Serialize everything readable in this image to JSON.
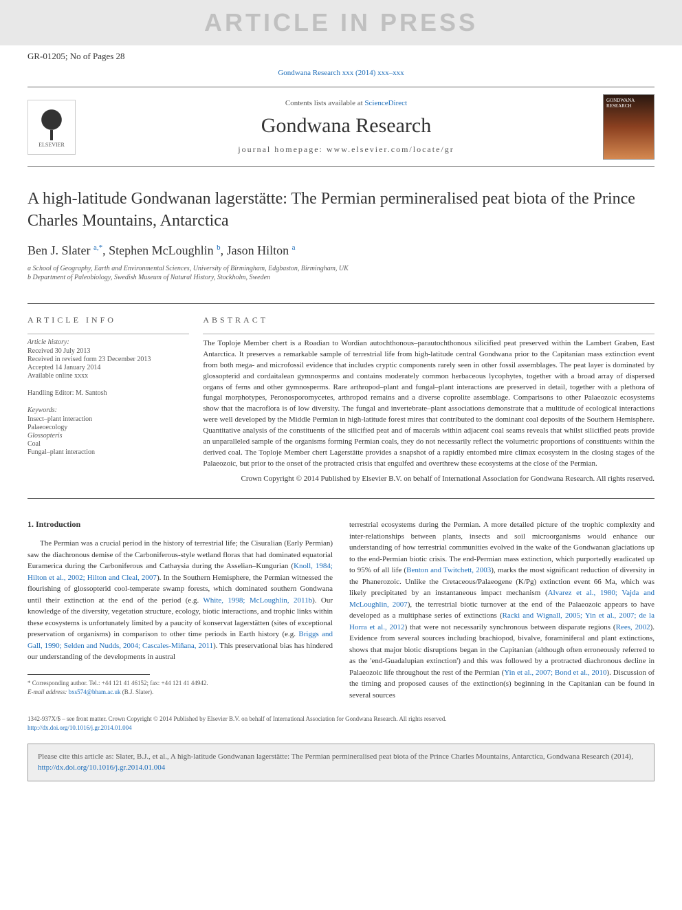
{
  "watermark": "ARTICLE IN PRESS",
  "doc_id": "GR-01205; No of Pages 28",
  "citation_top": "Gondwana Research xxx (2014) xxx–xxx",
  "header": {
    "contents_prefix": "Contents lists available at ",
    "contents_link": "ScienceDirect",
    "journal_name": "Gondwana Research",
    "homepage_prefix": "journal homepage: ",
    "homepage": "www.elsevier.com/locate/gr",
    "publisher_name": "ELSEVIER",
    "cover_label": "GONDWANA RESEARCH"
  },
  "article": {
    "title": "A high-latitude Gondwanan lagerstätte: The Permian permineralised peat biota of the Prince Charles Mountains, Antarctica",
    "authors_html": "Ben J. Slater <sup>a,*</sup>, Stephen McLoughlin <sup>b</sup>, Jason Hilton <sup>a</sup>",
    "affiliations": [
      "a School of Geography, Earth and Environmental Sciences, University of Birmingham, Edgbaston, Birmingham, UK",
      "b Department of Paleobiology, Swedish Museum of Natural History, Stockholm, Sweden"
    ]
  },
  "info": {
    "heading": "article info",
    "history_label": "Article history:",
    "history": [
      "Received 30 July 2013",
      "Received in revised form 23 December 2013",
      "Accepted 14 January 2014",
      "Available online xxxx"
    ],
    "editor": "Handling Editor: M. Santosh",
    "keywords_label": "Keywords:",
    "keywords": [
      "Insect–plant interaction",
      "Palaeoecology",
      "Glossopteris",
      "Coal",
      "Fungal–plant interaction"
    ]
  },
  "abstract": {
    "heading": "abstract",
    "text": "The Toploje Member chert is a Roadian to Wordian autochthonous–parautochthonous silicified peat preserved within the Lambert Graben, East Antarctica. It preserves a remarkable sample of terrestrial life from high-latitude central Gondwana prior to the Capitanian mass extinction event from both mega- and microfossil evidence that includes cryptic components rarely seen in other fossil assemblages. The peat layer is dominated by glossopterid and cordaitalean gymnosperms and contains moderately common herbaceous lycophytes, together with a broad array of dispersed organs of ferns and other gymnosperms. Rare arthropod–plant and fungal–plant interactions are preserved in detail, together with a plethora of fungal morphotypes, Peronosporomycetes, arthropod remains and a diverse coprolite assemblage. Comparisons to other Palaeozoic ecosystems show that the macroflora is of low diversity. The fungal and invertebrate–plant associations demonstrate that a multitude of ecological interactions were well developed by the Middle Permian in high-latitude forest mires that contributed to the dominant coal deposits of the Southern Hemisphere. Quantitative analysis of the constituents of the silicified peat and of macerals within adjacent coal seams reveals that whilst silicified peats provide an unparalleled sample of the organisms forming Permian coals, they do not necessarily reflect the volumetric proportions of constituents within the derived coal. The Toploje Member chert Lagerstätte provides a snapshot of a rapidly entombed mire climax ecosystem in the closing stages of the Palaeozoic, but prior to the onset of the protracted crisis that engulfed and overthrew these ecosystems at the close of the Permian.",
    "copyright": "Crown Copyright © 2014 Published by Elsevier B.V. on behalf of International Association for Gondwana Research. All rights reserved."
  },
  "body": {
    "section_heading": "1. Introduction",
    "col1": "The Permian was a crucial period in the history of terrestrial life; the Cisuralian (Early Permian) saw the diachronous demise of the Carboniferous-style wetland floras that had dominated equatorial Euramerica during the Carboniferous and Cathaysia during the Asselian–Kungurian (<a>Knoll, 1984; Hilton et al., 2002; Hilton and Cleal, 2007</a>). In the Southern Hemisphere, the Permian witnessed the flourishing of glossopterid cool-temperate swamp forests, which dominated southern Gondwana until their extinction at the end of the period (e.g. <a>White, 1998; McLoughlin, 2011b</a>). Our knowledge of the diversity, vegetation structure, ecology, biotic interactions, and trophic links within these ecosystems is unfortunately limited by a paucity of konservat lagerstätten (sites of exceptional preservation of organisms) in comparison to other time periods in Earth history (e.g. <a>Briggs and Gall, 1990; Selden and Nudds, 2004; Cascales-Miñana, 2011</a>). This preservational bias has hindered our understanding of the developments in austral",
    "col2": "terrestrial ecosystems during the Permian. A more detailed picture of the trophic complexity and inter-relationships between plants, insects and soil microorganisms would enhance our understanding of how terrestrial communities evolved in the wake of the Gondwanan glaciations up to the end-Permian biotic crisis. The end-Permian mass extinction, which purportedly eradicated up to 95% of all life (<a>Benton and Twitchett, 2003</a>), marks the most significant reduction of diversity in the Phanerozoic. Unlike the Cretaceous/Palaeogene (K/Pg) extinction event 66 Ma, which was likely precipitated by an instantaneous impact mechanism (<a>Alvarez et al., 1980; Vajda and McLoughlin, 2007</a>), the terrestrial biotic turnover at the end of the Palaeozoic appears to have developed as a multiphase series of extinctions (<a>Racki and Wignall, 2005; Yin et al., 2007; de la Horra et al., 2012</a>) that were not necessarily synchronous between disparate regions (<a>Rees, 2002</a>). Evidence from several sources including brachiopod, bivalve, foraminiferal and plant extinctions, shows that major biotic disruptions began in the Capitanian (although often erroneously referred to as the 'end-Guadalupian extinction') and this was followed by a protracted diachronous decline in Palaeozoic life throughout the rest of the Permian (<a>Yin et al., 2007; Bond et al., 2010</a>). Discussion of the timing and proposed causes of the extinction(s) beginning in the Capitanian can be found in several sources"
  },
  "correspondence": {
    "line1": "* Corresponding author. Tel.: +44 121 41 46152; fax: +44 121 41 44942.",
    "line2_prefix": "E-mail address: ",
    "email": "bxs574@bham.ac.uk",
    "line2_suffix": " (B.J. Slater)."
  },
  "footer": {
    "copyright": "1342-937X/$ – see front matter. Crown Copyright © 2014 Published by Elsevier B.V. on behalf of International Association for Gondwana Research. All rights reserved.",
    "doi": "http://dx.doi.org/10.1016/j.gr.2014.01.004"
  },
  "cite_box": {
    "text_prefix": "Please cite this article as: Slater, B.J., et al., A high-latitude Gondwanan lagerstätte: The Permian permineralised peat biota of the Prince Charles Mountains, Antarctica, Gondwana Research (2014), ",
    "link": "http://dx.doi.org/10.1016/j.gr.2014.01.004"
  },
  "colors": {
    "link": "#1a6bb8",
    "text": "#333333",
    "muted": "#555555",
    "watermark_bg": "#e8e8e8",
    "watermark_fg": "#c0c0c0",
    "citebox_bg": "#eeeeee"
  }
}
